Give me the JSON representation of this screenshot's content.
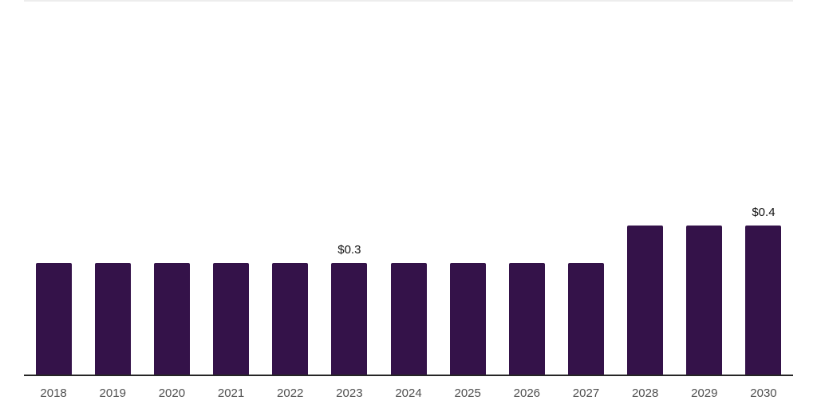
{
  "chart_data": {
    "type": "bar",
    "title": "",
    "xlabel": "",
    "ylabel": "",
    "categories": [
      "2018",
      "2019",
      "2020",
      "2021",
      "2022",
      "2023",
      "2024",
      "2025",
      "2026",
      "2027",
      "2028",
      "2029",
      "2030"
    ],
    "values": [
      0.3,
      0.3,
      0.3,
      0.3,
      0.3,
      0.3,
      0.3,
      0.3,
      0.3,
      0.3,
      0.4,
      0.4,
      0.4
    ],
    "data_labels": {
      "2023": "$0.3",
      "2030": "$0.4"
    },
    "ylim": [
      0,
      1.0
    ],
    "grid": "off",
    "legend": "none"
  },
  "colors": {
    "bar": "#341249",
    "axis_line": "#262626",
    "plot_top_border": "#ededed",
    "tick_label": "#4f4f4f",
    "value_label": "#111111",
    "background": "#ffffff"
  }
}
